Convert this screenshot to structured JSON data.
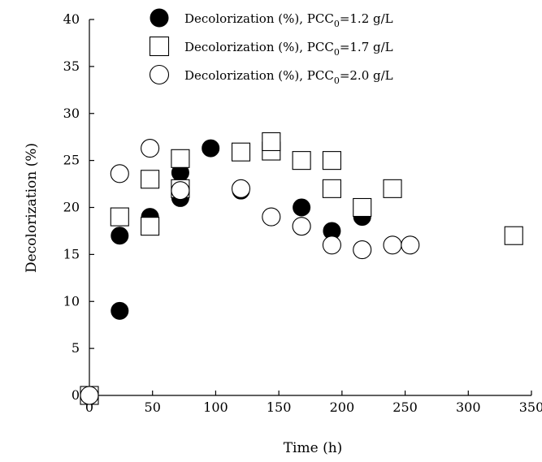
{
  "chart_data": {
    "type": "scatter",
    "title": "",
    "xlabel": "Time (h)",
    "ylabel": "Decolorization (%)",
    "xlim": [
      0,
      350
    ],
    "ylim": [
      0,
      40
    ],
    "x_ticks": [
      "0",
      "50",
      "100",
      "150",
      "200",
      "250",
      "300",
      "350"
    ],
    "y_ticks": [
      "0",
      "5",
      "10",
      "15",
      "20",
      "25",
      "30",
      "35",
      "40"
    ],
    "grid": false,
    "legend_position": "top",
    "series": [
      {
        "name_parts": {
          "prefix": "Decolorization (%), PCC",
          "sub": "0",
          "suffix": "=1.2 g/L"
        },
        "marker": "filled-circle",
        "color": "#000000",
        "points": [
          [
            0,
            0
          ],
          [
            24,
            9
          ],
          [
            24,
            17
          ],
          [
            48,
            19
          ],
          [
            72,
            21
          ],
          [
            72,
            23.7
          ],
          [
            96,
            26.3
          ],
          [
            120,
            21.8
          ],
          [
            120,
            22
          ],
          [
            144,
            19
          ],
          [
            144,
            19
          ],
          [
            168,
            18
          ],
          [
            168,
            20
          ],
          [
            192,
            16
          ],
          [
            192,
            17.5
          ],
          [
            216,
            19
          ]
        ]
      },
      {
        "name_parts": {
          "prefix": "Decolorization (%), PCC",
          "sub": "0",
          "suffix": "=1.7 g/L"
        },
        "marker": "open-square",
        "color": "#000000",
        "points": [
          [
            0,
            0
          ],
          [
            24,
            19
          ],
          [
            48,
            18
          ],
          [
            48,
            23
          ],
          [
            72,
            22
          ],
          [
            72,
            25.2
          ],
          [
            120,
            25.9
          ],
          [
            144,
            26
          ],
          [
            144,
            27
          ],
          [
            168,
            25
          ],
          [
            192,
            22
          ],
          [
            192,
            25
          ],
          [
            216,
            20
          ],
          [
            240,
            22
          ],
          [
            336,
            17
          ]
        ]
      },
      {
        "name_parts": {
          "prefix": "Decolorization (%), PCC",
          "sub": "0",
          "suffix": "=2.0 g/L"
        },
        "marker": "open-circle",
        "color": "#000000",
        "points": [
          [
            0,
            0
          ],
          [
            24,
            23.6
          ],
          [
            48,
            26.3
          ],
          [
            72,
            21.8
          ],
          [
            120,
            22
          ],
          [
            144,
            19
          ],
          [
            168,
            18
          ],
          [
            192,
            16
          ],
          [
            216,
            15.5
          ],
          [
            240,
            16
          ],
          [
            254,
            16
          ]
        ]
      }
    ]
  }
}
